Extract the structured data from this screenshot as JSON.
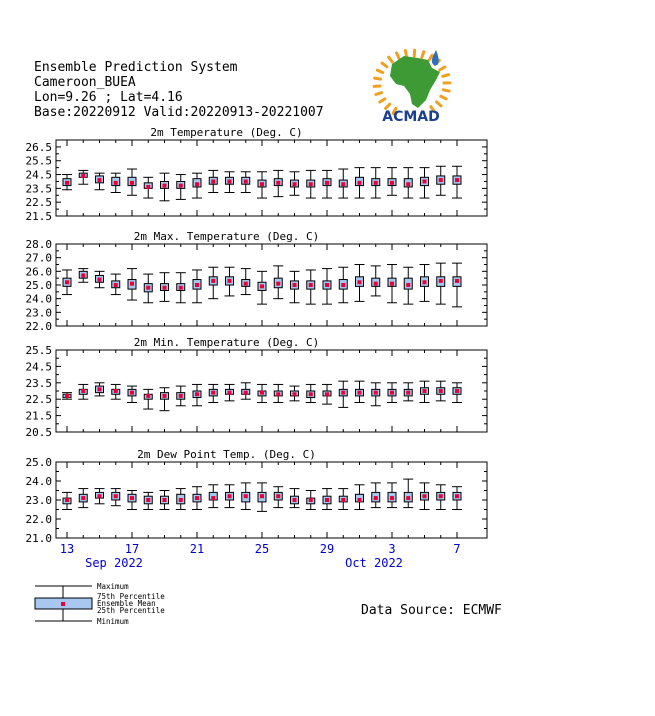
{
  "header": {
    "line1": "Ensemble Prediction System",
    "line2": "Cameroon_BUEA",
    "line3": "Lon=9.26 ; Lat=4.16",
    "line4": "Base:20220912 Valid:20220913-20221007"
  },
  "logo": {
    "text": "ACMAD",
    "colors": {
      "africa": "#3d9a35",
      "rays": "#f0a020",
      "text": "#1a3f8f",
      "drop": "#2d6fc0"
    }
  },
  "colors": {
    "box_fill": "#a8c8f0",
    "mean": "#e8003a",
    "whisker": "#000000",
    "axis": "#000000",
    "date_text": "#0000cc"
  },
  "x_axis": {
    "tick_labels": [
      {
        "day": 1,
        "label": "13"
      },
      {
        "day": 5,
        "label": "17"
      },
      {
        "day": 9,
        "label": "21"
      },
      {
        "day": 13,
        "label": "25"
      },
      {
        "day": 17,
        "label": "29"
      },
      {
        "day": 21,
        "label": "3"
      },
      {
        "day": 25,
        "label": "7"
      }
    ],
    "month_labels": [
      {
        "day": 5,
        "label": "Sep 2022"
      },
      {
        "day": 21,
        "label": "Oct 2022"
      }
    ]
  },
  "chart_data": [
    {
      "type": "box",
      "title": "2m Temperature (Deg. C)",
      "ylim": [
        21.5,
        27.0
      ],
      "yticks": [
        21.5,
        22.5,
        23.5,
        24.5,
        25.5,
        26.5
      ],
      "x": [
        1,
        2,
        3,
        4,
        5,
        6,
        7,
        8,
        9,
        10,
        11,
        12,
        13,
        14,
        15,
        16,
        17,
        18,
        19,
        20,
        21,
        22,
        23,
        24,
        25
      ],
      "min": [
        23.4,
        23.8,
        23.4,
        23.2,
        23.0,
        22.8,
        22.6,
        22.7,
        22.8,
        23.2,
        23.2,
        23.2,
        22.8,
        22.9,
        23.0,
        22.8,
        22.8,
        22.8,
        22.8,
        22.8,
        23.0,
        22.8,
        22.8,
        23.0,
        22.8
      ],
      "q1": [
        23.7,
        24.3,
        23.9,
        23.7,
        23.7,
        23.5,
        23.5,
        23.5,
        23.6,
        23.8,
        23.8,
        23.8,
        23.6,
        23.7,
        23.6,
        23.6,
        23.7,
        23.6,
        23.7,
        23.7,
        23.7,
        23.6,
        23.7,
        23.8,
        23.8
      ],
      "mean": [
        23.9,
        24.4,
        24.1,
        23.9,
        23.9,
        23.6,
        23.7,
        23.7,
        23.8,
        24.0,
        24.0,
        24.0,
        23.8,
        23.9,
        23.8,
        23.8,
        23.9,
        23.8,
        23.9,
        23.9,
        23.9,
        23.8,
        24.0,
        24.1,
        24.1
      ],
      "q3": [
        24.2,
        24.6,
        24.4,
        24.3,
        24.3,
        23.9,
        24.0,
        24.0,
        24.2,
        24.3,
        24.3,
        24.3,
        24.1,
        24.2,
        24.1,
        24.1,
        24.2,
        24.1,
        24.3,
        24.2,
        24.2,
        24.2,
        24.3,
        24.4,
        24.4
      ],
      "max": [
        24.5,
        24.8,
        24.6,
        24.6,
        24.9,
        24.3,
        24.6,
        24.5,
        24.6,
        24.8,
        24.7,
        24.7,
        24.7,
        24.8,
        24.7,
        24.8,
        24.8,
        24.9,
        25.0,
        25.0,
        25.0,
        25.0,
        25.0,
        25.1,
        25.1
      ]
    },
    {
      "type": "box",
      "title": "2m Max. Temperature (Deg. C)",
      "ylim": [
        22.0,
        28.0
      ],
      "yticks": [
        22.0,
        23.0,
        24.0,
        25.0,
        26.0,
        27.0,
        28.0
      ],
      "x": [
        1,
        2,
        3,
        4,
        5,
        6,
        7,
        8,
        9,
        10,
        11,
        12,
        13,
        14,
        15,
        16,
        17,
        18,
        19,
        20,
        21,
        22,
        23,
        24,
        25
      ],
      "min": [
        24.3,
        25.2,
        24.8,
        24.3,
        23.9,
        23.7,
        23.8,
        23.7,
        23.7,
        24.0,
        24.2,
        24.3,
        23.6,
        24.0,
        23.7,
        23.6,
        23.6,
        23.7,
        23.8,
        24.2,
        23.7,
        23.6,
        23.8,
        23.6,
        23.4
      ],
      "q1": [
        24.9,
        25.5,
        25.2,
        24.8,
        24.7,
        24.5,
        24.6,
        24.6,
        24.7,
        25.0,
        25.0,
        24.9,
        24.6,
        24.8,
        24.7,
        24.7,
        24.7,
        24.7,
        24.9,
        24.9,
        24.9,
        24.7,
        24.9,
        24.9,
        24.9
      ],
      "mean": [
        25.2,
        25.7,
        25.4,
        25.0,
        25.1,
        24.8,
        24.8,
        24.8,
        25.0,
        25.3,
        25.3,
        25.1,
        24.9,
        25.1,
        25.0,
        25.0,
        25.0,
        25.0,
        25.2,
        25.1,
        25.1,
        25.0,
        25.2,
        25.3,
        25.3
      ],
      "q3": [
        25.5,
        26.0,
        25.7,
        25.3,
        25.4,
        25.1,
        25.1,
        25.1,
        25.4,
        25.6,
        25.6,
        25.4,
        25.2,
        25.5,
        25.3,
        25.3,
        25.3,
        25.4,
        25.6,
        25.5,
        25.5,
        25.5,
        25.6,
        25.6,
        25.6
      ],
      "max": [
        26.1,
        26.2,
        26.0,
        25.8,
        26.2,
        25.8,
        25.9,
        25.9,
        26.1,
        26.3,
        26.3,
        26.2,
        26.0,
        26.4,
        26.0,
        26.1,
        26.2,
        26.3,
        26.5,
        26.4,
        26.5,
        26.3,
        26.5,
        26.6,
        26.6
      ]
    },
    {
      "type": "box",
      "title": "2m Min. Temperature (Deg. C)",
      "ylim": [
        20.5,
        25.5
      ],
      "yticks": [
        20.5,
        21.5,
        22.5,
        23.5,
        24.5,
        25.5
      ],
      "x": [
        1,
        2,
        3,
        4,
        5,
        6,
        7,
        8,
        9,
        10,
        11,
        12,
        13,
        14,
        15,
        16,
        17,
        18,
        19,
        20,
        21,
        22,
        23,
        24,
        25
      ],
      "min": [
        22.5,
        22.5,
        22.7,
        22.5,
        22.3,
        21.9,
        21.8,
        22.1,
        22.1,
        22.3,
        22.4,
        22.5,
        22.3,
        22.3,
        22.4,
        22.3,
        22.2,
        22.0,
        22.3,
        22.1,
        22.3,
        22.4,
        22.3,
        22.4,
        22.3
      ],
      "q1": [
        22.6,
        22.8,
        22.9,
        22.8,
        22.7,
        22.5,
        22.5,
        22.5,
        22.6,
        22.7,
        22.8,
        22.8,
        22.7,
        22.7,
        22.7,
        22.6,
        22.7,
        22.7,
        22.7,
        22.7,
        22.7,
        22.7,
        22.8,
        22.8,
        22.8
      ],
      "mean": [
        22.7,
        23.0,
        23.1,
        23.0,
        22.9,
        22.7,
        22.7,
        22.7,
        22.8,
        22.9,
        22.9,
        22.9,
        22.9,
        22.8,
        22.8,
        22.8,
        22.8,
        22.9,
        22.9,
        22.9,
        22.9,
        22.9,
        23.0,
        23.0,
        23.0
      ],
      "q3": [
        22.8,
        23.1,
        23.3,
        23.1,
        23.1,
        22.8,
        22.9,
        22.9,
        23.0,
        23.1,
        23.1,
        23.1,
        23.0,
        23.0,
        23.0,
        23.0,
        23.0,
        23.1,
        23.1,
        23.1,
        23.1,
        23.1,
        23.2,
        23.2,
        23.2
      ],
      "max": [
        22.9,
        23.4,
        23.5,
        23.4,
        23.3,
        23.1,
        23.2,
        23.3,
        23.4,
        23.4,
        23.4,
        23.5,
        23.4,
        23.4,
        23.3,
        23.4,
        23.4,
        23.6,
        23.6,
        23.5,
        23.5,
        23.5,
        23.6,
        23.6,
        23.5
      ]
    },
    {
      "type": "box",
      "title": "2m Dew Point Temp. (Deg. C)",
      "ylim": [
        21.0,
        25.0
      ],
      "yticks": [
        21.0,
        22.0,
        23.0,
        24.0,
        25.0
      ],
      "x": [
        1,
        2,
        3,
        4,
        5,
        6,
        7,
        8,
        9,
        10,
        11,
        12,
        13,
        14,
        15,
        16,
        17,
        18,
        19,
        20,
        21,
        22,
        23,
        24,
        25
      ],
      "min": [
        22.5,
        22.6,
        22.8,
        22.7,
        22.5,
        22.5,
        22.5,
        22.5,
        22.5,
        22.6,
        22.6,
        22.5,
        22.4,
        22.6,
        22.6,
        22.5,
        22.5,
        22.5,
        22.5,
        22.6,
        22.6,
        22.6,
        22.5,
        22.5,
        22.5
      ],
      "q1": [
        22.8,
        22.9,
        23.1,
        23.0,
        22.9,
        22.8,
        22.8,
        22.8,
        22.9,
        23.0,
        23.0,
        22.9,
        22.9,
        23.0,
        22.8,
        22.8,
        22.8,
        22.9,
        22.9,
        22.9,
        22.9,
        22.9,
        23.0,
        23.0,
        23.0
      ],
      "mean": [
        23.0,
        23.1,
        23.2,
        23.2,
        23.1,
        23.0,
        23.0,
        23.0,
        23.1,
        23.1,
        23.2,
        23.2,
        23.2,
        23.2,
        23.0,
        23.0,
        23.0,
        23.0,
        23.0,
        23.1,
        23.1,
        23.1,
        23.2,
        23.2,
        23.2
      ],
      "q3": [
        23.1,
        23.3,
        23.4,
        23.4,
        23.3,
        23.2,
        23.2,
        23.3,
        23.3,
        23.4,
        23.4,
        23.4,
        23.4,
        23.4,
        23.2,
        23.1,
        23.2,
        23.2,
        23.3,
        23.4,
        23.4,
        23.4,
        23.4,
        23.4,
        23.4
      ],
      "max": [
        23.4,
        23.6,
        23.6,
        23.6,
        23.5,
        23.4,
        23.5,
        23.6,
        23.7,
        23.8,
        23.8,
        23.9,
        23.9,
        23.7,
        23.6,
        23.5,
        23.6,
        23.6,
        23.8,
        23.9,
        23.9,
        24.1,
        23.9,
        23.8,
        23.7
      ]
    }
  ],
  "legend": {
    "maximum": "Maximum",
    "p75": "75th Percentile",
    "mean": "Ensemble Mean",
    "p25": "25th Percentile",
    "minimum": "Minimum"
  },
  "data_source": "Data Source: ECMWF"
}
